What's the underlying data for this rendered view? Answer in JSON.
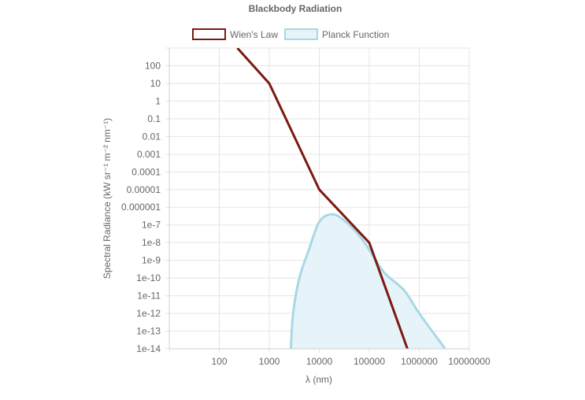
{
  "chart_data": {
    "type": "line",
    "title": "Blackbody Radiation",
    "xlabel": "λ (nm)",
    "ylabel": "Spectral Radiance (kW sr⁻¹ m⁻² nm⁻¹)",
    "x_scale": "log",
    "y_scale": "log",
    "xlim": [
      10,
      10000000
    ],
    "ylim": [
      1e-14,
      1000
    ],
    "x_ticks": [
      "100",
      "1000",
      "10000",
      "100000",
      "1000000",
      "10000000"
    ],
    "y_ticks": [
      "100",
      "10",
      "1",
      "0.1",
      "0.01",
      "0.001",
      "0.0001",
      "0.00001",
      "0.000001",
      "1e-7",
      "1e-8",
      "1e-9",
      "1e-10",
      "1e-11",
      "1e-12",
      "1e-13",
      "1e-14"
    ],
    "legend_position": "top",
    "grid": true,
    "series": [
      {
        "name": "Wien's Law",
        "color": "#7b1a10",
        "fill": false,
        "x": [
          230,
          1000,
          10000,
          100000,
          580000
        ],
        "y": [
          1000,
          10,
          1e-05,
          1e-08,
          1e-14
        ]
      },
      {
        "name": "Planck Function",
        "color": "#a8d8e6",
        "fill": true,
        "fill_color": "#e6f3f8",
        "x": [
          2700,
          3000,
          4000,
          6000,
          10000,
          18000,
          30000,
          60000,
          100000,
          200000,
          500000,
          1000000,
          3300000
        ],
        "y": [
          1e-14,
          1e-12,
          1e-10,
          3e-09,
          1.5e-07,
          4e-07,
          2e-07,
          3e-08,
          4e-09,
          2e-10,
          2e-11,
          1e-12,
          1e-14
        ]
      }
    ]
  }
}
